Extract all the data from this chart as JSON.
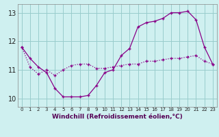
{
  "line1_x": [
    0,
    1,
    2,
    3,
    4,
    5,
    6,
    7,
    8,
    9,
    10,
    11,
    12,
    13,
    14,
    15,
    16,
    17,
    18,
    19,
    20,
    21,
    22,
    23
  ],
  "line1_y": [
    11.8,
    11.4,
    11.1,
    10.9,
    10.35,
    10.05,
    10.05,
    10.05,
    10.1,
    10.45,
    10.9,
    11.0,
    11.5,
    11.75,
    12.5,
    12.65,
    12.7,
    12.8,
    13.0,
    13.0,
    13.05,
    12.75,
    11.8,
    11.2
  ],
  "line2_x": [
    0,
    1,
    2,
    3,
    4,
    5,
    6,
    7,
    8,
    9,
    10,
    11,
    12,
    13,
    14,
    15,
    16,
    17,
    18,
    19,
    20,
    21,
    22,
    23
  ],
  "line2_y": [
    11.8,
    11.1,
    10.85,
    11.0,
    10.8,
    11.0,
    11.15,
    11.2,
    11.2,
    11.05,
    11.05,
    11.1,
    11.15,
    11.2,
    11.2,
    11.3,
    11.3,
    11.35,
    11.4,
    11.4,
    11.45,
    11.5,
    11.3,
    11.2
  ],
  "line_color": "#880088",
  "bg_color": "#cff0f0",
  "grid_color": "#99cccc",
  "xlabel": "Windchill (Refroidissement éolien,°C)",
  "ylim": [
    9.7,
    13.3
  ],
  "xlim": [
    -0.5,
    23.5
  ],
  "yticks": [
    10,
    11,
    12,
    13
  ],
  "xticks": [
    0,
    1,
    2,
    3,
    4,
    5,
    6,
    7,
    8,
    9,
    10,
    11,
    12,
    13,
    14,
    15,
    16,
    17,
    18,
    19,
    20,
    21,
    22,
    23
  ]
}
